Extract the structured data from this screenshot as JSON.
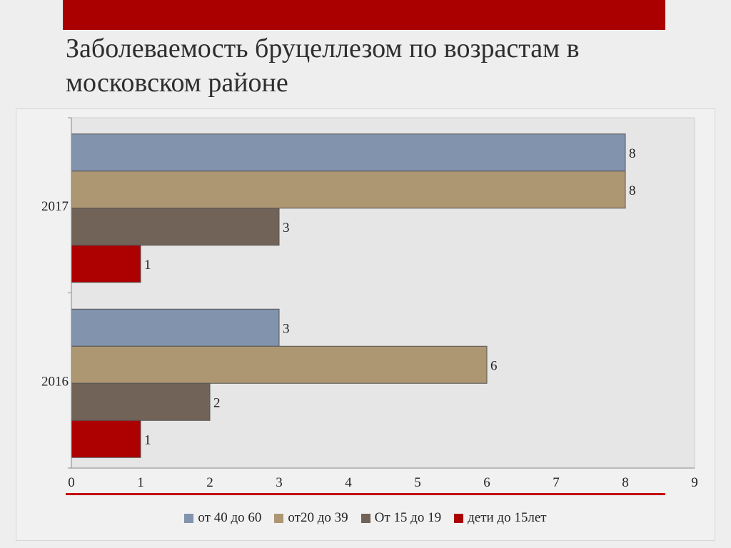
{
  "slide": {
    "title": "Заболеваемость бруцеллезом по возрастам в московском районе",
    "accent_color": "#ab0000"
  },
  "chart_data": {
    "type": "bar",
    "orientation": "horizontal",
    "categories": [
      "2017",
      "2016"
    ],
    "series": [
      {
        "name": "от 40 до 60",
        "color": "#8293ad",
        "values": [
          8,
          3
        ]
      },
      {
        "name": "от20 до 39",
        "color": "#ad9672",
        "values": [
          8,
          6
        ]
      },
      {
        "name": "От 15 до 19",
        "color": "#726358",
        "values": [
          3,
          2
        ]
      },
      {
        "name": "дети до 15лет",
        "color": "#ad0000",
        "values": [
          1,
          1
        ]
      }
    ],
    "xlim": [
      0,
      9
    ],
    "xticks": [
      "0",
      "1",
      "2",
      "3",
      "4",
      "5",
      "6",
      "7",
      "8",
      "9"
    ],
    "data_labels": true,
    "grid": false,
    "legend_position": "bottom"
  }
}
